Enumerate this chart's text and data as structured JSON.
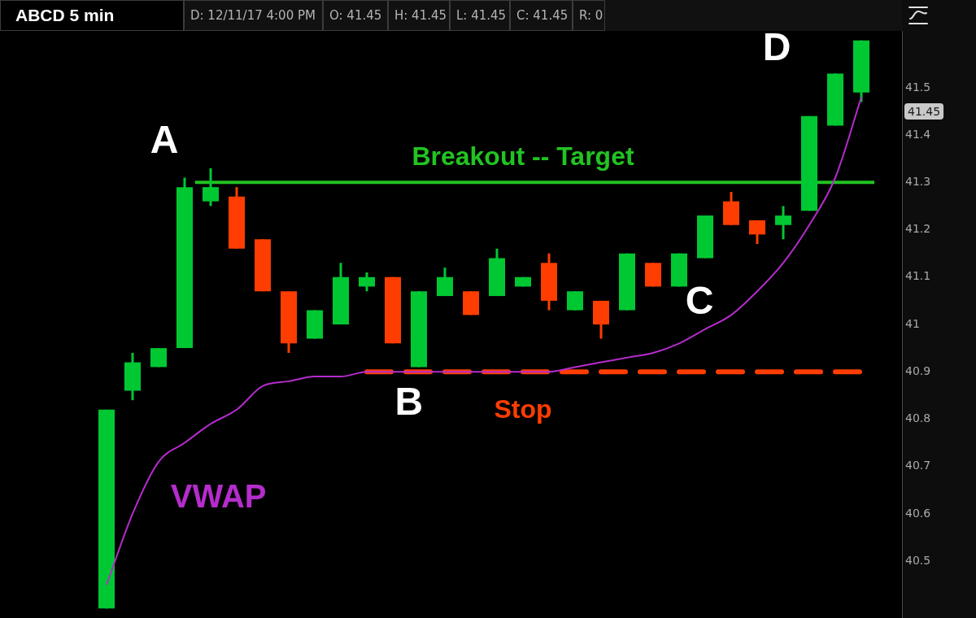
{
  "chart_data": {
    "type": "candlestick",
    "title": "ABCD 5 min",
    "categories": [
      null,
      null,
      null,
      null,
      null,
      null,
      null,
      null,
      null,
      null,
      null,
      null,
      null,
      null,
      null,
      null,
      null,
      null,
      null,
      null,
      null,
      null,
      null,
      null,
      null,
      null,
      null,
      null,
      null,
      null
    ],
    "ohlc": [
      [
        40.4,
        40.82,
        40.4,
        40.82
      ],
      [
        40.86,
        40.94,
        40.84,
        40.92
      ],
      [
        40.91,
        40.95,
        40.91,
        40.95
      ],
      [
        40.95,
        41.31,
        40.95,
        41.29
      ],
      [
        41.26,
        41.33,
        41.25,
        41.29
      ],
      [
        41.27,
        41.29,
        41.16,
        41.16
      ],
      [
        41.18,
        41.18,
        41.07,
        41.07
      ],
      [
        41.07,
        41.07,
        40.94,
        40.96
      ],
      [
        40.97,
        41.03,
        40.97,
        41.03
      ],
      [
        41.0,
        41.13,
        41.0,
        41.1
      ],
      [
        41.08,
        41.11,
        41.07,
        41.1
      ],
      [
        41.1,
        41.1,
        40.96,
        40.96
      ],
      [
        40.91,
        41.07,
        40.91,
        41.07
      ],
      [
        41.06,
        41.12,
        41.06,
        41.1
      ],
      [
        41.07,
        41.07,
        41.02,
        41.02
      ],
      [
        41.06,
        41.16,
        41.06,
        41.14
      ],
      [
        41.08,
        41.1,
        41.08,
        41.1
      ],
      [
        41.13,
        41.15,
        41.03,
        41.05
      ],
      [
        41.03,
        41.07,
        41.03,
        41.07
      ],
      [
        41.05,
        41.05,
        40.97,
        41.0
      ],
      [
        41.03,
        41.15,
        41.03,
        41.15
      ],
      [
        41.13,
        41.13,
        41.08,
        41.08
      ],
      [
        41.08,
        41.15,
        41.08,
        41.15
      ],
      [
        41.14,
        41.23,
        41.14,
        41.23
      ],
      [
        41.26,
        41.28,
        41.21,
        41.21
      ],
      [
        41.22,
        41.22,
        41.17,
        41.19
      ],
      [
        41.21,
        41.25,
        41.18,
        41.23
      ],
      [
        41.24,
        41.44,
        41.24,
        41.44
      ],
      [
        41.42,
        41.53,
        41.42,
        41.53
      ],
      [
        41.49,
        41.6,
        41.47,
        41.6
      ]
    ],
    "colors": [
      "#00c832",
      "#00c832",
      "#00c832",
      "#00c832",
      "#00c832",
      "#ff3d00",
      "#ff3d00",
      "#ff3d00",
      "#00c832",
      "#00c832",
      "#00c832",
      "#ff3d00",
      "#00c832",
      "#00c832",
      "#ff3d00",
      "#00c832",
      "#00c832",
      "#ff3d00",
      "#00c832",
      "#ff3d00",
      "#00c832",
      "#ff3d00",
      "#00c832",
      "#00c832",
      "#ff3d00",
      "#ff3d00",
      "#00c832",
      "#00c832",
      "#00c832",
      "#00c832"
    ],
    "series": [
      {
        "type": "line",
        "name": "VWAP",
        "color": "#b52ccc",
        "values": [
          40.45,
          40.6,
          40.71,
          40.75,
          40.79,
          40.82,
          40.87,
          40.88,
          40.89,
          40.89,
          40.9,
          40.9,
          40.9,
          40.9,
          40.9,
          40.9,
          40.9,
          40.9,
          40.91,
          40.92,
          40.93,
          40.94,
          40.96,
          40.99,
          41.02,
          41.07,
          41.13,
          41.21,
          41.31,
          41.48
        ]
      }
    ],
    "ylim": [
      40.38,
      41.62
    ],
    "yticks": [
      40.5,
      40.6,
      40.7,
      40.8,
      40.9,
      41,
      41.1,
      41.2,
      41.3,
      41.4,
      41.5
    ],
    "tick_labels": "y",
    "marker": "none",
    "ref_lines": [
      {
        "axis": "y",
        "value": 41.3,
        "label": "Breakout -- Target",
        "color": "#22c322",
        "line_style": "solid"
      },
      {
        "axis": "y",
        "value": 40.9,
        "label": "Stop",
        "color": "#ff3d00",
        "line_style": "dashed"
      }
    ],
    "annotations": [
      "D: 12/11/17 4:00 PM",
      "O: 41.45",
      "H: 41.45",
      "L: 41.45",
      "C: 41.45",
      "R: 0",
      "A",
      "B",
      "C",
      "D",
      "41.45"
    ]
  }
}
